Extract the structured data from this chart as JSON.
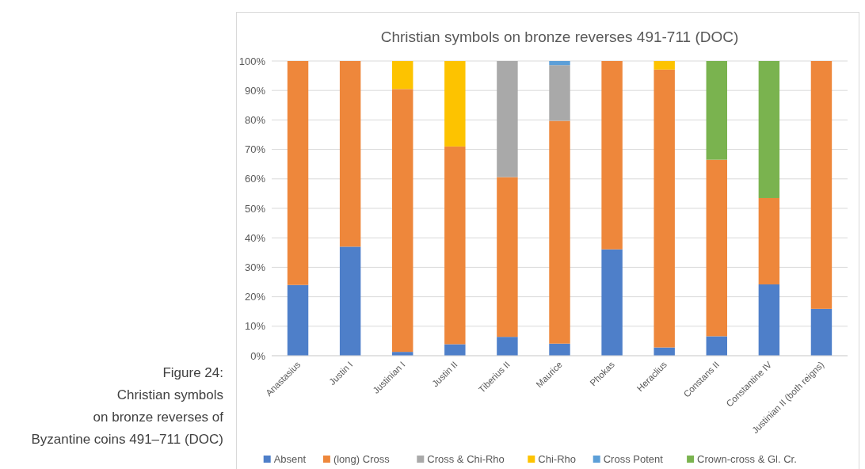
{
  "chart_data": {
    "type": "bar",
    "stacked": true,
    "title": "Christian symbols on bronze reverses 491-711 (DOC)",
    "categories": [
      "Anastasius",
      "Justin I",
      "Justinian I",
      "Justin II",
      "Tiberius II",
      "Maurice",
      "Phokas",
      "Heraclius",
      "Constans II",
      "Constantine IV",
      "Justinian II (both reigns)"
    ],
    "series": [
      {
        "name": "Absent",
        "color": "#4e7fc9",
        "values": [
          24.0,
          37.0,
          1.3,
          3.9,
          6.4,
          4.1,
          36.1,
          2.8,
          6.6,
          24.2,
          15.9
        ]
      },
      {
        "name": "(long) Cross",
        "color": "#ee873b",
        "values": [
          76.0,
          63.0,
          89.2,
          67.1,
          54.2,
          75.6,
          63.9,
          94.3,
          59.9,
          29.3,
          84.1
        ]
      },
      {
        "name": "Cross & Chi-Rho",
        "color": "#a9a9a9",
        "values": [
          0,
          0,
          0,
          0,
          39.4,
          18.9,
          0,
          0,
          0,
          0,
          0
        ]
      },
      {
        "name": "Chi-Rho",
        "color": "#fdc300",
        "values": [
          0,
          0,
          9.5,
          29.0,
          0,
          0,
          0,
          2.9,
          0,
          0,
          0
        ]
      },
      {
        "name": "Cross Potent",
        "color": "#5c9fd8",
        "values": [
          0,
          0,
          0,
          0,
          0,
          1.4,
          0,
          0,
          0,
          0,
          0
        ]
      },
      {
        "name": "Crown-cross & Gl. Cr.",
        "color": "#7ab34f",
        "values": [
          0,
          0,
          0,
          0,
          0,
          0,
          0,
          0,
          33.5,
          46.5,
          0
        ]
      }
    ],
    "ylim": [
      0,
      100
    ],
    "yticks": [
      {
        "value": 0,
        "label": "0%"
      },
      {
        "value": 10,
        "label": "10%"
      },
      {
        "value": 20,
        "label": "20%"
      },
      {
        "value": 30,
        "label": "30%"
      },
      {
        "value": 40,
        "label": "40%"
      },
      {
        "value": 50,
        "label": "50%"
      },
      {
        "value": 60,
        "label": "60%"
      },
      {
        "value": 70,
        "label": "70%"
      },
      {
        "value": 80,
        "label": "80%"
      },
      {
        "value": 90,
        "label": "90%"
      },
      {
        "value": 100,
        "label": "100%"
      }
    ],
    "grid": "y",
    "legend": "bottom",
    "annotations": [
      "Figure 24:",
      "Christian symbols",
      "on bronze reverses of",
      "Byzantine coins 491–711 (DOC)"
    ]
  }
}
